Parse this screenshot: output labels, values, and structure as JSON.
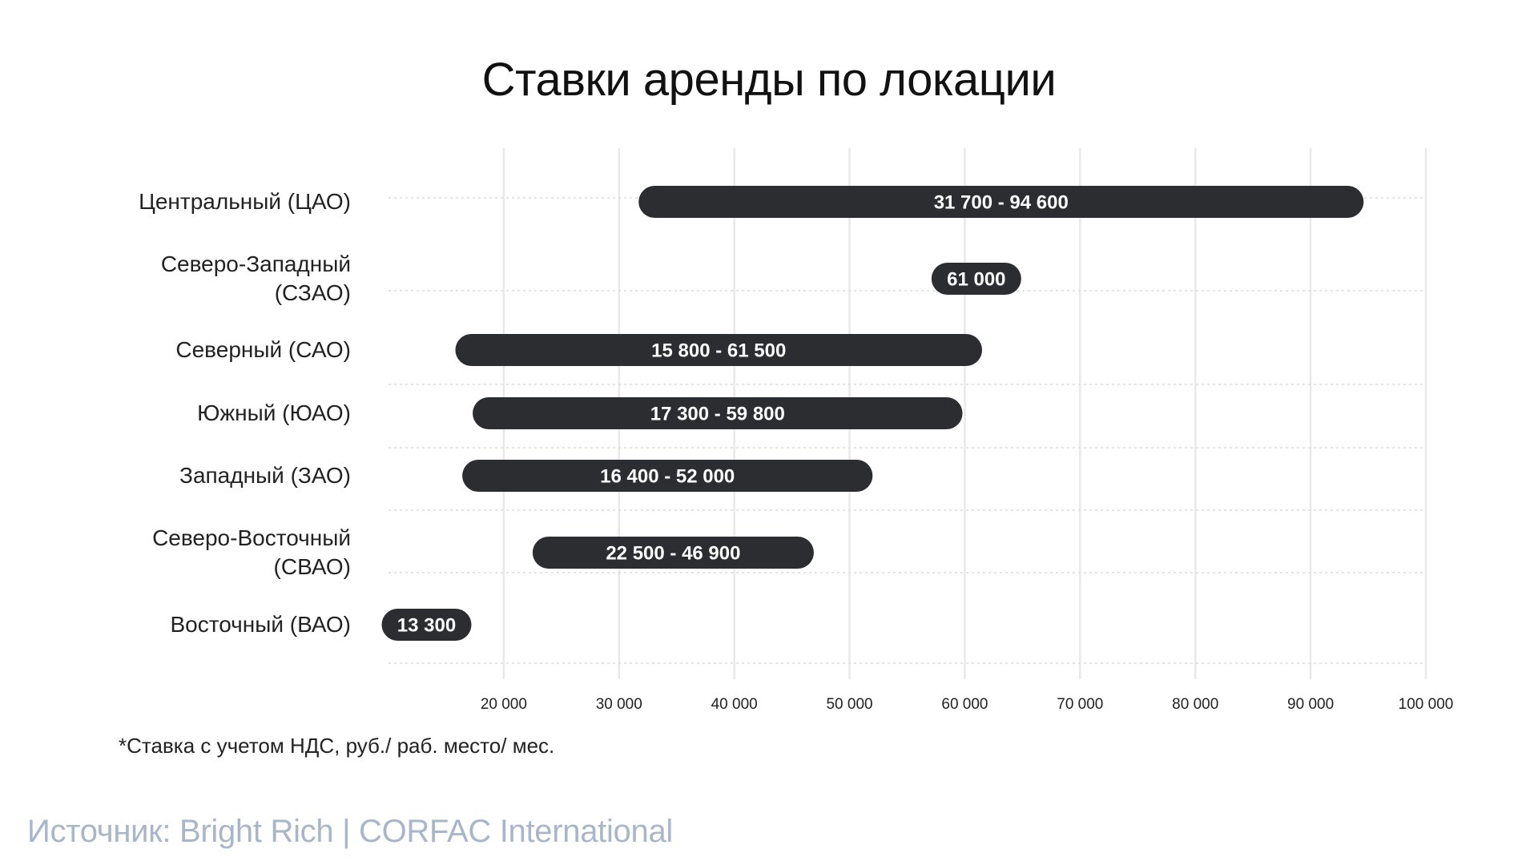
{
  "chart_data": {
    "type": "bar",
    "orientation": "horizontal-range",
    "title": "Ставки аренды по локации",
    "xlabel": "",
    "ylabel": "",
    "xlim": [
      10000,
      100000
    ],
    "xticks": [
      20000,
      30000,
      40000,
      50000,
      60000,
      70000,
      80000,
      90000,
      100000
    ],
    "xtick_labels": [
      "20 000",
      "30 000",
      "40 000",
      "50 000",
      "60 000",
      "70 000",
      "80 000",
      "90 000",
      "100 000"
    ],
    "grid": true,
    "legend": "none",
    "bar_color": "#2b2d31",
    "categories": [
      "Центральный (ЦАО)",
      "Северо-Западный (СЗАО)",
      "Северный (САО)",
      "Южный (ЮАО)",
      "Западный (ЗАО)",
      "Северо-Восточный (СВАО)",
      "Восточный (ВАО)"
    ],
    "category_lines": [
      [
        "Центральный (ЦАО)"
      ],
      [
        "Северо-Западный",
        "(СЗАО)"
      ],
      [
        "Северный (САО)"
      ],
      [
        "Южный (ЮАО)"
      ],
      [
        "Западный (ЗАО)"
      ],
      [
        "Северо-Восточный",
        "(СВАО)"
      ],
      [
        "Восточный (ВАО)"
      ]
    ],
    "ranges": [
      {
        "min": 31700,
        "max": 94600,
        "label": "31 700 - 94 600"
      },
      {
        "min": 61000,
        "max": 61000,
        "label": "61 000"
      },
      {
        "min": 15800,
        "max": 61500,
        "label": "15 800 - 61 500"
      },
      {
        "min": 17300,
        "max": 59800,
        "label": "17 300 - 59 800"
      },
      {
        "min": 16400,
        "max": 52000,
        "label": "16 400 - 52 000"
      },
      {
        "min": 22500,
        "max": 46900,
        "label": "22 500 - 46 900"
      },
      {
        "min": 13300,
        "max": 13300,
        "label": "13 300"
      }
    ]
  },
  "footnote": "*Ставка с учетом НДС, руб./ раб. место/ мес.",
  "source": "Источник: Bright Rich | CORFAC International"
}
